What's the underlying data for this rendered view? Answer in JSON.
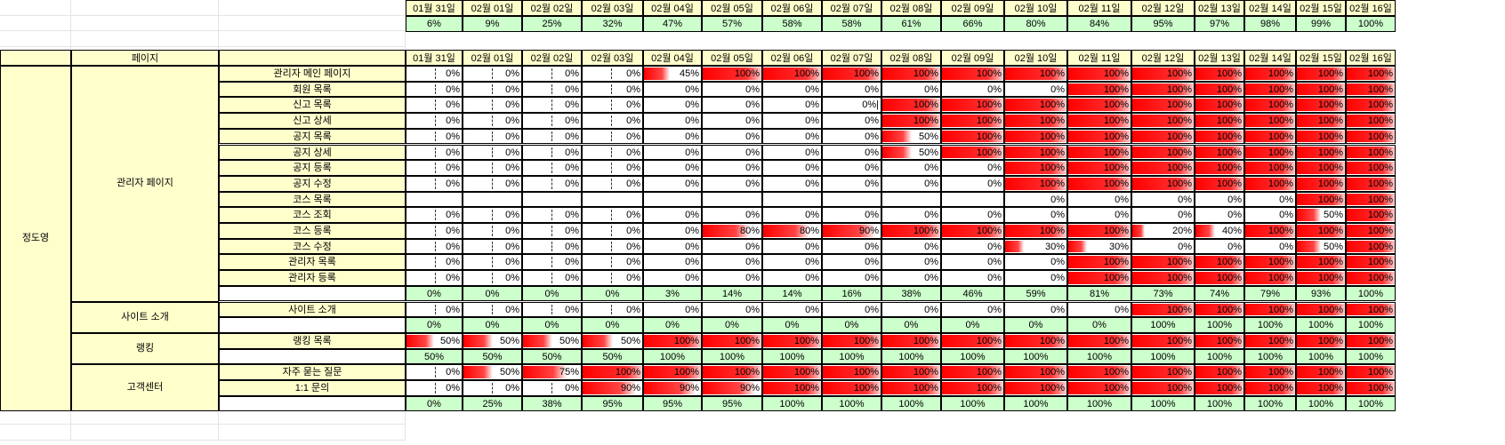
{
  "dates": [
    "01월 31일",
    "02월 01일",
    "02월 02일",
    "02월 03일",
    "02월 04일",
    "02월 05일",
    "02월 06일",
    "02월 07일",
    "02월 08일",
    "02월 09일",
    "02월 10일",
    "02월 11일",
    "02월 12일",
    "02월 13일",
    "02월 14일",
    "02월 15일",
    "02월 16일"
  ],
  "top_progress": [
    "6%",
    "9%",
    "25%",
    "32%",
    "47%",
    "57%",
    "58%",
    "58%",
    "61%",
    "66%",
    "80%",
    "84%",
    "95%",
    "97%",
    "98%",
    "99%",
    "100%"
  ],
  "header": {
    "page_label": "페이지"
  },
  "owner": "정도영",
  "groups": [
    {
      "name": "관리자 페이지",
      "rows": [
        {
          "label": "관리자 메인 페이지",
          "values": [
            0,
            0,
            0,
            0,
            45,
            100,
            100,
            100,
            100,
            100,
            100,
            100,
            100,
            100,
            100,
            100,
            100
          ]
        },
        {
          "label": "회원 목록",
          "values": [
            0,
            0,
            0,
            0,
            0,
            0,
            0,
            0,
            0,
            0,
            0,
            100,
            100,
            100,
            100,
            100,
            100
          ]
        },
        {
          "label": "신고 목록",
          "values": [
            0,
            0,
            0,
            0,
            0,
            0,
            0,
            "0%|",
            100,
            100,
            100,
            100,
            100,
            100,
            100,
            100,
            100
          ]
        },
        {
          "label": "신고 상세",
          "values": [
            0,
            0,
            0,
            0,
            0,
            0,
            0,
            0,
            100,
            100,
            100,
            100,
            100,
            100,
            100,
            100,
            100
          ]
        },
        {
          "label": "공지 목록",
          "values": [
            0,
            0,
            0,
            0,
            0,
            0,
            0,
            0,
            50,
            100,
            100,
            100,
            100,
            100,
            100,
            100,
            100
          ]
        },
        {
          "label": "공지 상세",
          "values": [
            0,
            0,
            0,
            0,
            0,
            0,
            0,
            0,
            50,
            100,
            100,
            100,
            100,
            100,
            100,
            100,
            100
          ]
        },
        {
          "label": "공지 등록",
          "values": [
            0,
            0,
            0,
            0,
            0,
            0,
            0,
            0,
            0,
            0,
            100,
            100,
            100,
            100,
            100,
            100,
            100
          ]
        },
        {
          "label": "공지 수정",
          "values": [
            0,
            0,
            0,
            0,
            0,
            0,
            0,
            0,
            0,
            0,
            100,
            100,
            100,
            100,
            100,
            100,
            100
          ]
        },
        {
          "label": "코스 목록",
          "values": [
            null,
            null,
            null,
            null,
            null,
            null,
            null,
            null,
            null,
            null,
            0,
            0,
            0,
            0,
            0,
            100,
            100
          ]
        },
        {
          "label": "코스 조회",
          "values": [
            0,
            0,
            0,
            0,
            0,
            0,
            0,
            0,
            0,
            0,
            0,
            0,
            0,
            0,
            0,
            50,
            100
          ]
        },
        {
          "label": "코스 등록",
          "values": [
            0,
            0,
            0,
            0,
            0,
            80,
            80,
            90,
            100,
            100,
            100,
            100,
            20,
            40,
            100,
            100,
            100
          ]
        },
        {
          "label": "코스 수정",
          "values": [
            0,
            0,
            0,
            0,
            0,
            0,
            0,
            0,
            0,
            0,
            30,
            30,
            0,
            0,
            0,
            50,
            100
          ]
        },
        {
          "label": "관리자 목록",
          "values": [
            0,
            0,
            0,
            0,
            0,
            0,
            0,
            0,
            0,
            0,
            0,
            100,
            100,
            100,
            100,
            100,
            100
          ]
        },
        {
          "label": "관리자 등록",
          "values": [
            0,
            0,
            0,
            0,
            0,
            0,
            0,
            0,
            0,
            0,
            0,
            100,
            100,
            100,
            100,
            100,
            100
          ]
        }
      ],
      "summary": [
        "0%",
        "0%",
        "0%",
        "0%",
        "3%",
        "14%",
        "14%",
        "16%",
        "38%",
        "46%",
        "59%",
        "81%",
        "73%",
        "74%",
        "79%",
        "93%",
        "100%"
      ]
    },
    {
      "name": "사이트 소개",
      "rows": [
        {
          "label": "사이트 소개",
          "values": [
            0,
            0,
            0,
            0,
            0,
            0,
            0,
            0,
            0,
            0,
            0,
            0,
            100,
            100,
            100,
            100,
            100
          ]
        }
      ],
      "summary": [
        "0%",
        "0%",
        "0%",
        "0%",
        "0%",
        "0%",
        "0%",
        "0%",
        "0%",
        "0%",
        "0%",
        "0%",
        "100%",
        "100%",
        "100%",
        "100%",
        "100%"
      ]
    },
    {
      "name": "랭킹",
      "rows": [
        {
          "label": "랭킹 목록",
          "values": [
            50,
            50,
            50,
            50,
            100,
            100,
            100,
            100,
            100,
            100,
            100,
            100,
            100,
            100,
            100,
            100,
            100
          ]
        }
      ],
      "summary": [
        "50%",
        "50%",
        "50%",
        "50%",
        "100%",
        "100%",
        "100%",
        "100%",
        "100%",
        "100%",
        "100%",
        "100%",
        "100%",
        "100%",
        "100%",
        "100%",
        "100%"
      ]
    },
    {
      "name": "고객센터",
      "rows": [
        {
          "label": "자주 묻는 질문",
          "values": [
            0,
            50,
            75,
            100,
            100,
            100,
            100,
            100,
            100,
            100,
            100,
            100,
            100,
            100,
            100,
            100,
            100
          ]
        },
        {
          "label": "1:1 문의",
          "values": [
            0,
            0,
            0,
            90,
            90,
            90,
            100,
            100,
            100,
            100,
            100,
            100,
            100,
            100,
            100,
            100,
            100
          ]
        }
      ],
      "summary": [
        "0%",
        "25%",
        "38%",
        "95%",
        "95%",
        "95%",
        "100%",
        "100%",
        "100%",
        "100%",
        "100%",
        "100%",
        "100%",
        "100%",
        "100%",
        "100%",
        "100%"
      ]
    }
  ]
}
